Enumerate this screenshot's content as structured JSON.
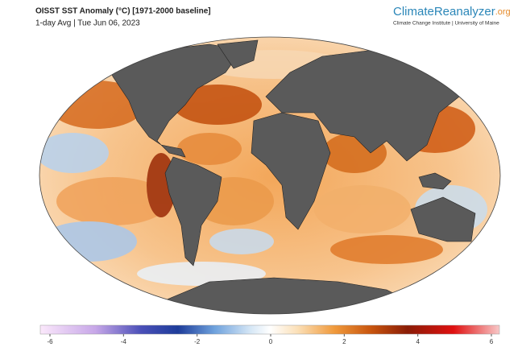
{
  "header": {
    "title": "OISST SST Anomaly (°C) [1971-2000 baseline]",
    "subtitle": "1-day Avg | Tue Jun 06, 2023"
  },
  "logo": {
    "name": "ClimateReanalyzer",
    "suffix": ".org",
    "tagline": "Climate Change Institute | University of Maine"
  },
  "colorbar": {
    "ticks": [
      -6,
      -4,
      -2,
      0,
      2,
      4,
      6
    ]
  }
}
